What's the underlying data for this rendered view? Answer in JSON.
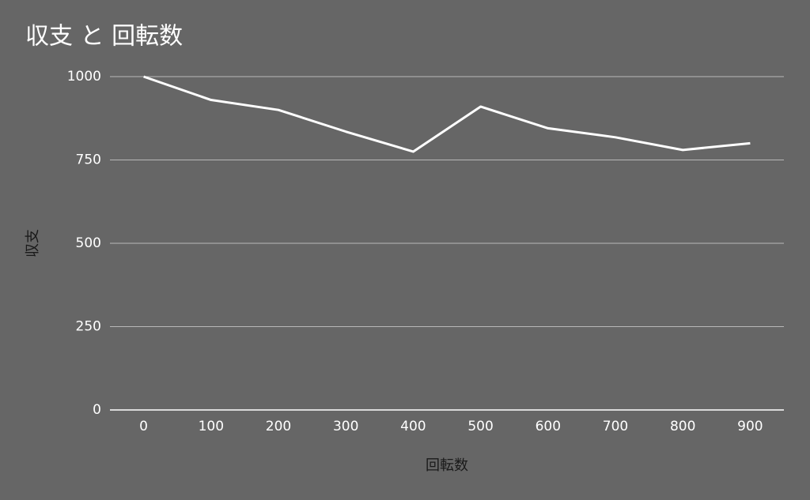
{
  "chart_data": {
    "type": "line",
    "title": "収支 と 回転数",
    "x_label": "回転数",
    "y_label": "収支",
    "categories": [
      "0",
      "100",
      "200",
      "300",
      "400",
      "500",
      "600",
      "700",
      "800",
      "900"
    ],
    "series": [
      {
        "name": "収支",
        "color": "#ffffff",
        "values": [
          1000,
          930,
          900,
          835,
          775,
          910,
          845,
          818,
          780,
          800
        ]
      }
    ],
    "ylim": [
      0,
      1000
    ],
    "yticks": [
      0,
      250,
      500,
      750,
      1000
    ],
    "grid": true
  }
}
